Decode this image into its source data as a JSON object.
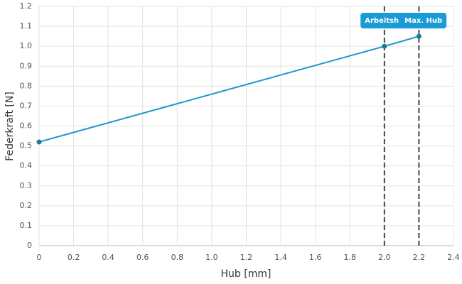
{
  "chart_data": {
    "type": "line",
    "x_label": "Hub [mm]",
    "y_label": "Federkraft [N]",
    "series": [
      {
        "name": "Federkraft",
        "color": "#1b96cf",
        "marker_color": "#177c9e",
        "x": [
          0,
          2.0,
          2.2
        ],
        "values": [
          0.52,
          1.0,
          1.05
        ]
      }
    ],
    "xlim": [
      0,
      2.4
    ],
    "xticks": [
      0,
      0.2,
      0.4,
      0.6,
      0.8,
      {
        "value": 1,
        "label": "1.0"
      },
      1.2,
      1.4,
      1.6,
      1.8,
      {
        "value": 2,
        "label": "2.0"
      },
      2.2,
      2.4
    ],
    "ylim": [
      0,
      1.2
    ],
    "yticks": [
      0,
      0.1,
      0.2,
      0.3,
      0.4,
      0.5,
      0.6,
      0.7,
      0.8,
      0.9,
      {
        "value": 1,
        "label": "1.0"
      },
      1.1,
      1.2
    ],
    "grid": true,
    "annotations": [
      {
        "x": 2.0,
        "label": "Arbeitsh"
      },
      {
        "x": 2.2,
        "label": "Max. Hub"
      }
    ],
    "annotation_color": "#1a9ad6"
  }
}
